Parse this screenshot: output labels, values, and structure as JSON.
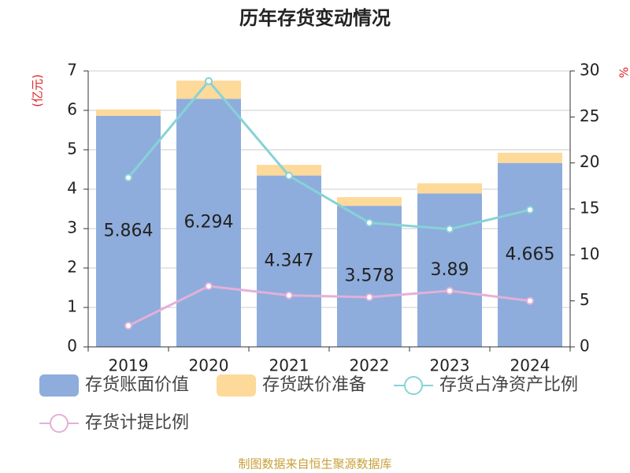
{
  "chart_data": {
    "type": "bar-line",
    "title": "历年存货变动情况",
    "y_label": "(亿元)",
    "y2_label": "%",
    "source": "制图数据来自恒生聚源数据库",
    "categories": [
      "2019",
      "2020",
      "2021",
      "2022",
      "2023",
      "2024"
    ],
    "series": [
      {
        "name": "存货账面价值",
        "color": "#8eaddc",
        "kind": "bar",
        "values": [
          5.864,
          6.294,
          4.347,
          3.578,
          3.89,
          4.665
        ]
      },
      {
        "name": "存货跌价准备",
        "color": "#fdd99a",
        "kind": "bar",
        "values": [
          0.16,
          0.46,
          0.27,
          0.22,
          0.26,
          0.26
        ]
      },
      {
        "name": "存货占净资产比例",
        "color": "#86d3d6",
        "kind": "line",
        "axis": "y2",
        "values": [
          18.4,
          28.9,
          18.6,
          13.5,
          12.8,
          14.9
        ]
      },
      {
        "name": "存货计提比例",
        "color": "#e3b0d8",
        "kind": "line",
        "axis": "y2",
        "values": [
          2.3,
          6.6,
          5.6,
          5.4,
          6.1,
          5.0
        ]
      }
    ],
    "ylim": [
      0,
      7
    ],
    "yticks": [
      0,
      1,
      2,
      3,
      4,
      5,
      6,
      7
    ],
    "y2lim": [
      0,
      30
    ],
    "y2ticks": [
      0,
      5,
      10,
      15,
      20,
      25,
      30
    ],
    "grid": true
  }
}
